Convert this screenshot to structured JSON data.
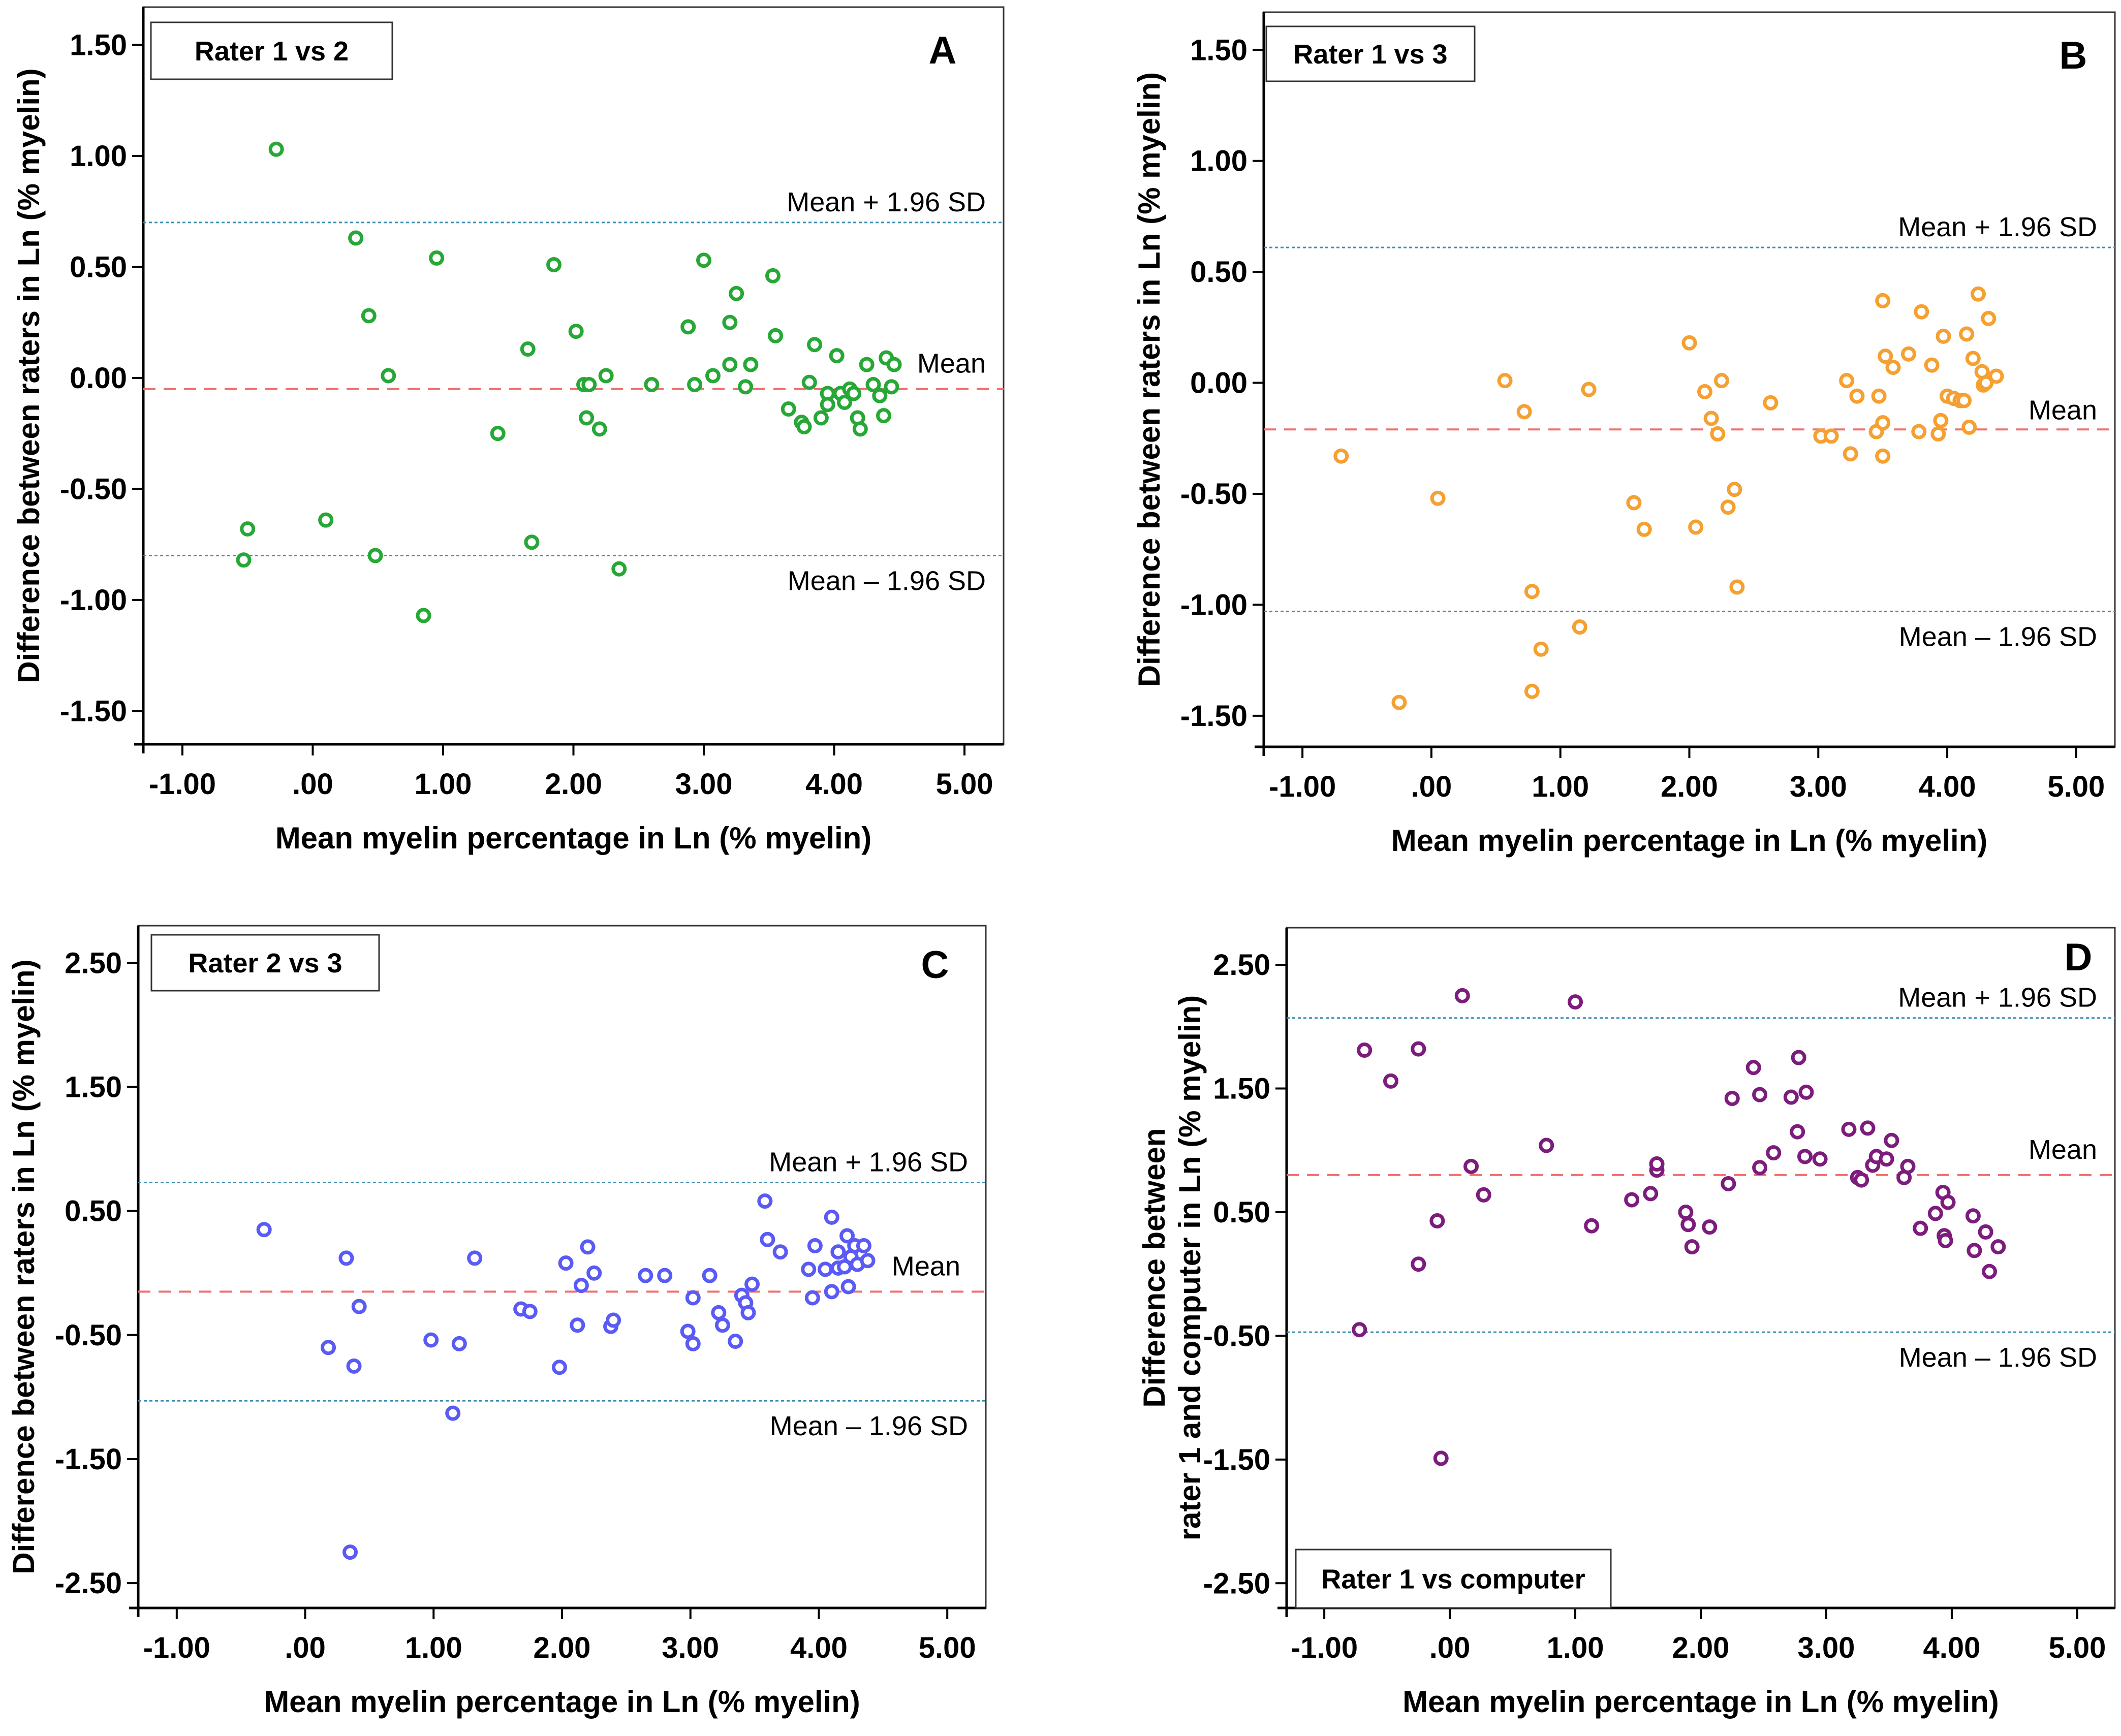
{
  "chart_data": [
    {
      "panel": "A",
      "type": "scatter",
      "title": "Rater 1 vs 2",
      "xlabel": "Mean myelin percentage in Ln (% myelin)",
      "ylabel": [
        "Difference between raters in Ln (% myelin)"
      ],
      "xlim": [
        -1.3,
        5.3
      ],
      "ylim": [
        -1.65,
        1.67
      ],
      "xticks": [
        -1,
        0,
        1,
        2,
        3,
        4,
        5
      ],
      "xtick_labels": [
        "-1.00",
        ".00",
        "1.00",
        "2.00",
        "3.00",
        "4.00",
        "5.00"
      ],
      "yticks": [
        1.5,
        1.0,
        0.5,
        0.0,
        -0.5,
        -1.0,
        -1.5
      ],
      "ytick_labels": [
        "1.50",
        "1.00",
        "0.50",
        "0.00",
        "-0.50",
        "-1.00",
        "-1.50"
      ],
      "color": "#27a836",
      "mean": -0.05,
      "upper": 0.7,
      "lower": -0.8,
      "upper_label": "Mean + 1.96 SD",
      "mean_label": "Mean",
      "lower_label": "Mean – 1.96 SD",
      "label_pos": "top-left",
      "points": [
        [
          -0.28,
          1.03
        ],
        [
          0.33,
          0.63
        ],
        [
          0.43,
          0.28
        ],
        [
          0.58,
          0.01
        ],
        [
          0.95,
          0.54
        ],
        [
          -0.5,
          -0.68
        ],
        [
          -0.53,
          -0.82
        ],
        [
          0.1,
          -0.64
        ],
        [
          0.48,
          -0.8
        ],
        [
          0.85,
          -1.07
        ],
        [
          1.42,
          -0.25
        ],
        [
          1.65,
          0.13
        ],
        [
          1.68,
          -0.74
        ],
        [
          1.85,
          0.51
        ],
        [
          2.02,
          0.21
        ],
        [
          2.08,
          -0.03
        ],
        [
          2.12,
          -0.03
        ],
        [
          2.1,
          -0.18
        ],
        [
          2.2,
          -0.23
        ],
        [
          2.25,
          0.01
        ],
        [
          2.35,
          -0.86
        ],
        [
          2.6,
          -0.03
        ],
        [
          2.88,
          0.23
        ],
        [
          2.93,
          -0.03
        ],
        [
          3.0,
          0.53
        ],
        [
          3.07,
          0.01
        ],
        [
          3.2,
          0.06
        ],
        [
          3.2,
          0.25
        ],
        [
          3.25,
          0.38
        ],
        [
          3.32,
          -0.04
        ],
        [
          3.36,
          0.06
        ],
        [
          3.53,
          0.46
        ],
        [
          3.55,
          0.19
        ],
        [
          3.65,
          -0.14
        ],
        [
          3.75,
          -0.2
        ],
        [
          3.77,
          -0.22
        ],
        [
          3.81,
          -0.02
        ],
        [
          3.85,
          0.15
        ],
        [
          3.9,
          -0.18
        ],
        [
          3.95,
          -0.07
        ],
        [
          3.95,
          -0.12
        ],
        [
          4.02,
          0.1
        ],
        [
          4.05,
          -0.07
        ],
        [
          4.08,
          -0.11
        ],
        [
          4.12,
          -0.05
        ],
        [
          4.15,
          -0.07
        ],
        [
          4.18,
          -0.18
        ],
        [
          4.2,
          -0.23
        ],
        [
          4.25,
          0.06
        ],
        [
          4.3,
          -0.03
        ],
        [
          4.35,
          -0.08
        ],
        [
          4.38,
          -0.17
        ],
        [
          4.4,
          0.09
        ],
        [
          4.44,
          -0.04
        ],
        [
          4.46,
          0.06
        ]
      ]
    },
    {
      "panel": "B",
      "type": "scatter",
      "title": "Rater 1 vs 3",
      "xlabel": "Mean myelin percentage in Ln (% myelin)",
      "ylabel": [
        "Difference between raters in Ln (% myelin)"
      ],
      "xlim": [
        -1.3,
        5.3
      ],
      "ylim": [
        -1.64,
        1.67
      ],
      "xticks": [
        -1,
        0,
        1,
        2,
        3,
        4,
        5
      ],
      "xtick_labels": [
        "-1.00",
        ".00",
        "1.00",
        "2.00",
        "3.00",
        "4.00",
        "5.00"
      ],
      "yticks": [
        1.5,
        1.0,
        0.5,
        0.0,
        -0.5,
        -1.0,
        -1.5
      ],
      "ytick_labels": [
        "1.50",
        "1.00",
        "0.50",
        "0.00",
        "-0.50",
        "-1.00",
        "-1.50"
      ],
      "color": "#f5a030",
      "mean": -0.21,
      "upper": 0.61,
      "lower": -1.03,
      "upper_label": "Mean + 1.96 SD",
      "mean_label": "Mean",
      "lower_label": "Mean – 1.96 SD",
      "label_pos": "top-left",
      "points": [
        [
          -0.7,
          -0.33
        ],
        [
          -0.25,
          -1.44
        ],
        [
          0.05,
          -0.52
        ],
        [
          0.57,
          0.01
        ],
        [
          0.72,
          -0.13
        ],
        [
          0.78,
          -0.94
        ],
        [
          0.78,
          -1.39
        ],
        [
          0.85,
          -1.2
        ],
        [
          1.15,
          -1.1
        ],
        [
          1.22,
          -0.03
        ],
        [
          1.57,
          -0.54
        ],
        [
          1.65,
          -0.66
        ],
        [
          2.0,
          0.18
        ],
        [
          2.05,
          -0.65
        ],
        [
          2.12,
          -0.04
        ],
        [
          2.17,
          -0.16
        ],
        [
          2.22,
          -0.23
        ],
        [
          2.25,
          0.01
        ],
        [
          2.3,
          -0.56
        ],
        [
          2.35,
          -0.48
        ],
        [
          2.37,
          -0.92
        ],
        [
          2.63,
          -0.09
        ],
        [
          3.02,
          -0.24
        ],
        [
          3.1,
          -0.24
        ],
        [
          3.22,
          0.01
        ],
        [
          3.25,
          -0.32
        ],
        [
          3.3,
          -0.06
        ],
        [
          3.45,
          -0.22
        ],
        [
          3.47,
          -0.06
        ],
        [
          3.5,
          -0.33
        ],
        [
          3.5,
          0.37
        ],
        [
          3.52,
          0.12
        ],
        [
          3.5,
          -0.18
        ],
        [
          3.58,
          0.07
        ],
        [
          3.7,
          0.13
        ],
        [
          3.78,
          -0.22
        ],
        [
          3.8,
          0.32
        ],
        [
          3.88,
          0.08
        ],
        [
          3.93,
          -0.23
        ],
        [
          3.95,
          -0.17
        ],
        [
          3.97,
          0.21
        ],
        [
          4.0,
          -0.06
        ],
        [
          4.05,
          -0.07
        ],
        [
          4.1,
          -0.08
        ],
        [
          4.13,
          -0.08
        ],
        [
          4.15,
          0.22
        ],
        [
          4.17,
          -0.2
        ],
        [
          4.2,
          0.11
        ],
        [
          4.24,
          0.4
        ],
        [
          4.27,
          0.05
        ],
        [
          4.28,
          -0.01
        ],
        [
          4.32,
          0.29
        ],
        [
          4.3,
          0.0
        ],
        [
          4.38,
          0.03
        ]
      ]
    },
    {
      "panel": "C",
      "type": "scatter",
      "title": "Rater 2 vs 3",
      "xlabel": "Mean myelin percentage in Ln (% myelin)",
      "ylabel": [
        "Difference between raters in Ln (% myelin)"
      ],
      "xlim": [
        -1.3,
        5.3
      ],
      "ylim": [
        -2.7,
        2.8
      ],
      "xticks": [
        -1,
        0,
        1,
        2,
        3,
        4,
        5
      ],
      "xtick_labels": [
        "-1.00",
        ".00",
        "1.00",
        "2.00",
        "3.00",
        "4.00",
        "5.00"
      ],
      "yticks": [
        2.5,
        1.5,
        0.5,
        -0.5,
        -1.5,
        -2.5
      ],
      "ytick_labels": [
        "2.50",
        "1.50",
        "0.50",
        "-0.50",
        "-1.50",
        "-2.50"
      ],
      "color": "#5a5af5",
      "mean": -0.15,
      "upper": 0.73,
      "lower": -1.03,
      "upper_label": "Mean + 1.96 SD",
      "mean_label": "Mean",
      "lower_label": "Mean – 1.96 SD",
      "label_pos": "top-left",
      "points": [
        [
          -0.32,
          0.35
        ],
        [
          0.18,
          -0.6
        ],
        [
          0.32,
          0.12
        ],
        [
          0.35,
          -2.25
        ],
        [
          0.38,
          -0.75
        ],
        [
          0.42,
          -0.27
        ],
        [
          0.98,
          -0.54
        ],
        [
          1.15,
          -1.13
        ],
        [
          1.2,
          -0.57
        ],
        [
          1.32,
          0.12
        ],
        [
          1.68,
          -0.29
        ],
        [
          1.75,
          -0.31
        ],
        [
          1.98,
          -0.76
        ],
        [
          2.03,
          0.08
        ],
        [
          2.12,
          -0.42
        ],
        [
          2.15,
          -0.1
        ],
        [
          2.2,
          0.21
        ],
        [
          2.25,
          0.0
        ],
        [
          2.38,
          -0.43
        ],
        [
          2.4,
          -0.38
        ],
        [
          2.65,
          -0.02
        ],
        [
          2.8,
          -0.02
        ],
        [
          2.98,
          -0.47
        ],
        [
          3.02,
          -0.57
        ],
        [
          3.02,
          -0.2
        ],
        [
          3.15,
          -0.02
        ],
        [
          3.22,
          -0.32
        ],
        [
          3.25,
          -0.42
        ],
        [
          3.35,
          -0.55
        ],
        [
          3.4,
          -0.18
        ],
        [
          3.43,
          -0.24
        ],
        [
          3.45,
          -0.32
        ],
        [
          3.48,
          -0.09
        ],
        [
          3.58,
          0.58
        ],
        [
          3.6,
          0.27
        ],
        [
          3.7,
          0.17
        ],
        [
          3.92,
          0.03
        ],
        [
          3.95,
          -0.2
        ],
        [
          3.97,
          0.22
        ],
        [
          4.05,
          0.03
        ],
        [
          4.1,
          0.45
        ],
        [
          4.1,
          -0.15
        ],
        [
          4.15,
          0.04
        ],
        [
          4.15,
          0.17
        ],
        [
          4.2,
          0.05
        ],
        [
          4.22,
          0.3
        ],
        [
          4.25,
          0.13
        ],
        [
          4.23,
          -0.11
        ],
        [
          4.28,
          0.22
        ],
        [
          4.3,
          0.07
        ],
        [
          4.35,
          0.22
        ],
        [
          4.38,
          0.1
        ]
      ]
    },
    {
      "panel": "D",
      "type": "scatter",
      "title": "Rater 1 vs computer",
      "xlabel": "Mean myelin percentage in Ln (% myelin)",
      "ylabel": [
        "Difference between",
        "rater 1 and computer in Ln (% myelin)"
      ],
      "xlim": [
        -1.3,
        5.3
      ],
      "ylim": [
        -2.7,
        2.8
      ],
      "xticks": [
        -1,
        0,
        1,
        2,
        3,
        4,
        5
      ],
      "xtick_labels": [
        "-1.00",
        ".00",
        "1.00",
        "2.00",
        "3.00",
        "4.00",
        "5.00"
      ],
      "yticks": [
        2.5,
        1.5,
        0.5,
        -0.5,
        -1.5,
        -2.5
      ],
      "ytick_labels": [
        "2.50",
        "1.50",
        "0.50",
        "-0.50",
        "-1.50",
        "-2.50"
      ],
      "color": "#7c1c7c",
      "mean": 0.8,
      "upper": 2.07,
      "lower": -0.47,
      "upper_label": "Mean + 1.96 SD",
      "mean_label": "Mean",
      "lower_label": "Mean – 1.96 SD",
      "label_pos": "bottom-left",
      "points": [
        [
          -0.72,
          -0.45
        ],
        [
          -0.68,
          1.81
        ],
        [
          -0.47,
          1.56
        ],
        [
          -0.25,
          1.82
        ],
        [
          -0.25,
          0.08
        ],
        [
          -0.1,
          0.43
        ],
        [
          -0.07,
          -1.49
        ],
        [
          0.1,
          2.25
        ],
        [
          0.17,
          0.87
        ],
        [
          0.27,
          0.64
        ],
        [
          0.77,
          1.04
        ],
        [
          1.0,
          2.2
        ],
        [
          1.13,
          0.39
        ],
        [
          1.45,
          0.6
        ],
        [
          1.6,
          0.65
        ],
        [
          1.65,
          0.84
        ],
        [
          1.65,
          0.89
        ],
        [
          1.88,
          0.5
        ],
        [
          1.9,
          0.4
        ],
        [
          1.93,
          0.22
        ],
        [
          2.07,
          0.38
        ],
        [
          2.22,
          0.73
        ],
        [
          2.25,
          1.42
        ],
        [
          2.42,
          1.67
        ],
        [
          2.47,
          0.86
        ],
        [
          2.47,
          1.45
        ],
        [
          2.58,
          0.98
        ],
        [
          2.72,
          1.43
        ],
        [
          2.77,
          1.15
        ],
        [
          2.78,
          1.75
        ],
        [
          2.83,
          0.95
        ],
        [
          2.84,
          1.47
        ],
        [
          2.95,
          0.93
        ],
        [
          3.18,
          1.17
        ],
        [
          3.25,
          0.78
        ],
        [
          3.28,
          0.76
        ],
        [
          3.33,
          1.18
        ],
        [
          3.37,
          0.88
        ],
        [
          3.4,
          0.95
        ],
        [
          3.48,
          0.93
        ],
        [
          3.52,
          1.08
        ],
        [
          3.62,
          0.78
        ],
        [
          3.65,
          0.87
        ],
        [
          3.75,
          0.37
        ],
        [
          3.87,
          0.49
        ],
        [
          3.93,
          0.66
        ],
        [
          3.94,
          0.31
        ],
        [
          3.95,
          0.27
        ],
        [
          3.97,
          0.58
        ],
        [
          4.17,
          0.47
        ],
        [
          4.18,
          0.19
        ],
        [
          4.27,
          0.34
        ],
        [
          4.3,
          0.02
        ],
        [
          4.37,
          0.22
        ]
      ]
    }
  ]
}
